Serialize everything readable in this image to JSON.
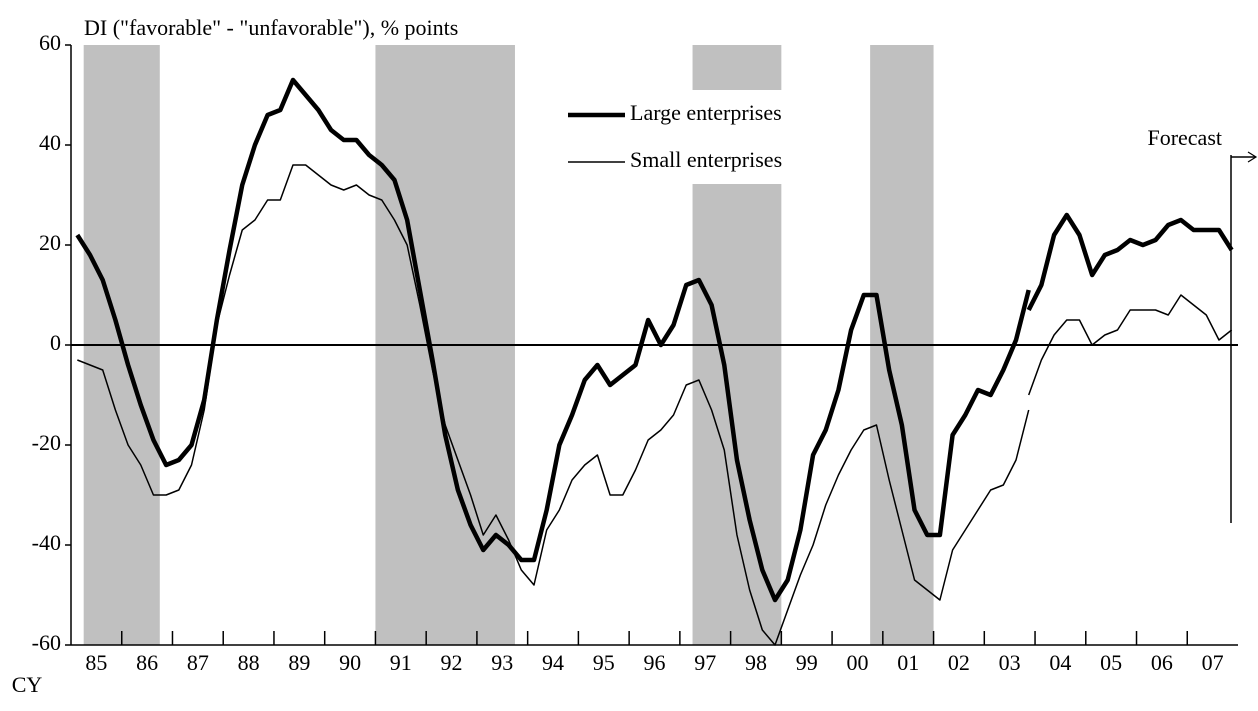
{
  "chart_data": {
    "type": "line",
    "title": "DI (\"favorable\" - \"unfavorable\"), % points",
    "x_label": "CY",
    "forecast_label": "Forecast",
    "xlim": [
      1985,
      2008
    ],
    "ylim": [
      -60,
      60
    ],
    "yticks": [
      -60,
      -40,
      -20,
      0,
      20,
      40,
      60
    ],
    "xticks": [
      {
        "value": 1985.5,
        "label": "85"
      },
      {
        "value": 1986.5,
        "label": "86"
      },
      {
        "value": 1987.5,
        "label": "87"
      },
      {
        "value": 1988.5,
        "label": "88"
      },
      {
        "value": 1989.5,
        "label": "89"
      },
      {
        "value": 1990.5,
        "label": "90"
      },
      {
        "value": 1991.5,
        "label": "91"
      },
      {
        "value": 1992.5,
        "label": "92"
      },
      {
        "value": 1993.5,
        "label": "93"
      },
      {
        "value": 1994.5,
        "label": "94"
      },
      {
        "value": 1995.5,
        "label": "95"
      },
      {
        "value": 1996.5,
        "label": "96"
      },
      {
        "value": 1997.5,
        "label": "97"
      },
      {
        "value": 1998.5,
        "label": "98"
      },
      {
        "value": 1999.5,
        "label": "99"
      },
      {
        "value": 2000.5,
        "label": "00"
      },
      {
        "value": 2001.5,
        "label": "01"
      },
      {
        "value": 2002.5,
        "label": "02"
      },
      {
        "value": 2003.5,
        "label": "03"
      },
      {
        "value": 2004.5,
        "label": "04"
      },
      {
        "value": 2005.5,
        "label": "05"
      },
      {
        "value": 2006.5,
        "label": "06"
      },
      {
        "value": 2007.5,
        "label": "07"
      }
    ],
    "shaded_periods": [
      [
        1985.25,
        1986.75
      ],
      [
        1991.0,
        1993.75
      ],
      [
        1997.25,
        1999.0
      ],
      [
        2000.75,
        2002.0
      ]
    ],
    "shade_color": "#c0c0c0",
    "x": [
      1985.125,
      1985.375,
      1985.625,
      1985.875,
      1986.125,
      1986.375,
      1986.625,
      1986.875,
      1987.125,
      1987.375,
      1987.625,
      1987.875,
      1988.125,
      1988.375,
      1988.625,
      1988.875,
      1989.125,
      1989.375,
      1989.625,
      1989.875,
      1990.125,
      1990.375,
      1990.625,
      1990.875,
      1991.125,
      1991.375,
      1991.625,
      1991.875,
      1992.125,
      1992.375,
      1992.625,
      1992.875,
      1993.125,
      1993.375,
      1993.625,
      1993.875,
      1994.125,
      1994.375,
      1994.625,
      1994.875,
      1995.125,
      1995.375,
      1995.625,
      1995.875,
      1996.125,
      1996.375,
      1996.625,
      1996.875,
      1997.125,
      1997.375,
      1997.625,
      1997.875,
      1998.125,
      1998.375,
      1998.625,
      1998.875,
      1999.125,
      1999.375,
      1999.625,
      1999.875,
      2000.125,
      2000.375,
      2000.625,
      2000.875,
      2001.125,
      2001.375,
      2001.625,
      2001.875,
      2002.125,
      2002.375,
      2002.625,
      2002.875,
      2003.125,
      2003.375,
      2003.625,
      2003.875
    ],
    "series": [
      {
        "name": "Large enterprises",
        "color": "#000000",
        "line_width": 4.5,
        "values": [
          22,
          18,
          13,
          5,
          -4,
          -12,
          -19,
          -24,
          -23,
          -20,
          -11,
          5,
          19,
          32,
          40,
          46,
          47,
          53,
          50,
          47,
          43,
          41,
          41,
          38,
          36,
          33,
          25,
          11,
          -3,
          -18,
          -29,
          -36,
          -41,
          -38,
          -40,
          -43,
          -43,
          -33,
          -20,
          -14,
          -7,
          -4,
          -8,
          -6,
          -4,
          5,
          0,
          4,
          12,
          13,
          8,
          -4,
          -23,
          -35,
          -45,
          -51,
          -47,
          -37,
          -22,
          -17,
          -9,
          3,
          10,
          10,
          -5,
          -16,
          -33,
          -38,
          -38,
          -18,
          -14,
          -9,
          -10,
          -5,
          1,
          11
        ]
      },
      {
        "name": "Small enterprises",
        "color": "#000000",
        "line_width": 1.5,
        "values": [
          -3,
          -4,
          -5,
          -13,
          -20,
          -24,
          -30,
          -30,
          -29,
          -24,
          -13,
          4,
          14,
          23,
          25,
          29,
          29,
          36,
          36,
          34,
          32,
          31,
          32,
          30,
          29,
          25,
          20,
          8,
          -5,
          -16,
          -23,
          -30,
          -38,
          -34,
          -39,
          -45,
          -48,
          -37,
          -33,
          -27,
          -24,
          -22,
          -30,
          -30,
          -25,
          -19,
          -17,
          -14,
          -8,
          -7,
          -13,
          -21,
          -38,
          -49,
          -57,
          -60,
          -53,
          -46,
          -40,
          -32,
          -26,
          -21,
          -17,
          -16,
          -27,
          -37,
          -47,
          -49,
          -51,
          -41,
          -37,
          -33,
          -29,
          -28,
          -23,
          -13
        ]
      },
      {
        "color": "#000000",
        "line_width": 4.5,
        "x": [
          2003.875,
          2004.125,
          2004.375,
          2004.625,
          2004.875,
          2005.125,
          2005.375,
          2005.625,
          2005.875,
          2006.125,
          2006.375,
          2006.625,
          2006.875,
          2007.125,
          2007.375,
          2007.625,
          2007.875
        ],
        "values": [
          7,
          12,
          22,
          26,
          22,
          14,
          18,
          19,
          21,
          20,
          21,
          24,
          25,
          23,
          23,
          23,
          19
        ]
      },
      {
        "color": "#000000",
        "line_width": 1.5,
        "x": [
          2003.875,
          2004.125,
          2004.375,
          2004.625,
          2004.875,
          2005.125,
          2005.375,
          2005.625,
          2005.875,
          2006.125,
          2006.375,
          2006.625,
          2006.875,
          2007.125,
          2007.375,
          2007.625,
          2007.875
        ],
        "values": [
          -10,
          -3,
          2,
          5,
          5,
          0,
          2,
          3,
          7,
          7,
          7,
          6,
          10,
          8,
          6,
          1,
          3
        ]
      }
    ]
  }
}
